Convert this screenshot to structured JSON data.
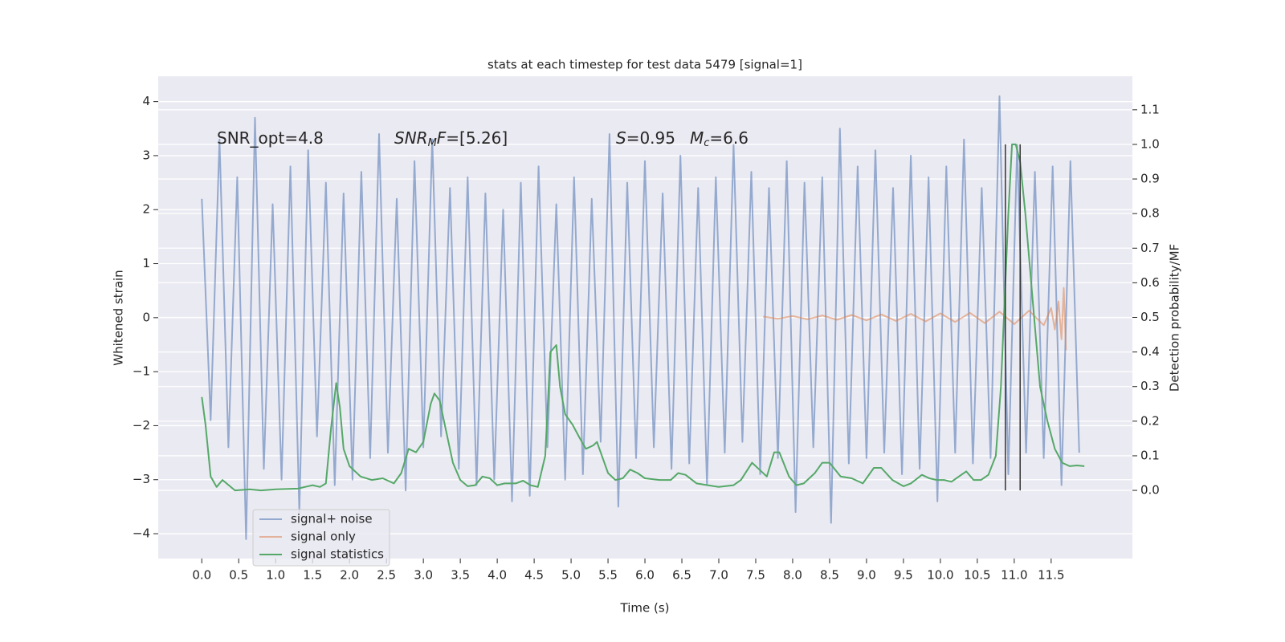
{
  "chart_data": {
    "type": "line",
    "title": "stats at each timestep for test data 5479 [signal=1]",
    "xlabel": "Time (s)",
    "ylabel": "Whitened strain",
    "y2label": "Detection probability/MF",
    "xlim": [
      -0.59,
      12.6
    ],
    "ylim": [
      -4.46,
      4.47
    ],
    "y2lim": [
      -0.197,
      1.197
    ],
    "xticks": [
      {
        "value": 0,
        "label": "0.0"
      },
      0.5,
      {
        "value": 1,
        "label": "1.0"
      },
      1.5,
      {
        "value": 2,
        "label": "2.0"
      },
      2.5,
      {
        "value": 3,
        "label": "3.0"
      },
      3.5,
      {
        "value": 4,
        "label": "4.0"
      },
      4.5,
      {
        "value": 5,
        "label": "5.0"
      },
      5.5,
      {
        "value": 6,
        "label": "6.0"
      },
      6.5,
      {
        "value": 7,
        "label": "7.0"
      },
      7.5,
      {
        "value": 8,
        "label": "8.0"
      },
      8.5,
      {
        "value": 9,
        "label": "9.0"
      },
      9.5,
      {
        "value": 10,
        "label": "10.0"
      },
      10.5,
      {
        "value": 11,
        "label": "11.0"
      },
      11.5
    ],
    "yticks": [
      {
        "value": -4,
        "label": "−4"
      },
      {
        "value": -3,
        "label": "−3"
      },
      {
        "value": -2,
        "label": "−2"
      },
      {
        "value": -1,
        "label": "−1"
      },
      0,
      1,
      2,
      3,
      4
    ],
    "y2ticks": [
      {
        "value": 0,
        "label": "0.0"
      },
      0.1,
      0.2,
      0.3,
      0.4,
      0.5,
      0.6,
      0.7,
      0.8,
      0.9,
      {
        "value": 1,
        "label": "1.0"
      },
      1.1
    ],
    "grid": true,
    "legend": "lower left",
    "series": [
      {
        "name": "signal+ noise",
        "color": "#4c72b0",
        "x": [
          0,
          0.12,
          0.24,
          0.36,
          0.48,
          0.6,
          0.72,
          0.84,
          0.96,
          1.08,
          1.2,
          1.32,
          1.44,
          1.56,
          1.68,
          1.8,
          1.92,
          2.04,
          2.16,
          2.28,
          2.4,
          2.52,
          2.64,
          2.76,
          2.88,
          3,
          3.12,
          3.24,
          3.36,
          3.48,
          3.6,
          3.72,
          3.84,
          3.96,
          4.08,
          4.2,
          4.32,
          4.44,
          4.56,
          4.68,
          4.8,
          4.92,
          5.04,
          5.16,
          5.28,
          5.4,
          5.52,
          5.64,
          5.76,
          5.88,
          6,
          6.12,
          6.24,
          6.36,
          6.48,
          6.6,
          6.72,
          6.84,
          6.96,
          7.08,
          7.2,
          7.32,
          7.44,
          7.56,
          7.68,
          7.8,
          7.92,
          8.04,
          8.16,
          8.28,
          8.4,
          8.52,
          8.64,
          8.76,
          8.88,
          9,
          9.12,
          9.24,
          9.36,
          9.48,
          9.6,
          9.72,
          9.84,
          9.96,
          10.08,
          10.2,
          10.32,
          10.44,
          10.56,
          10.68,
          10.8,
          10.92,
          11.04,
          11.16,
          11.28,
          11.4,
          11.52,
          11.64,
          11.76,
          11.88
        ],
        "values": [
          2.2,
          -1.9,
          3.3,
          -2.4,
          2.6,
          -4.1,
          3.7,
          -2.8,
          2.1,
          -3.0,
          2.8,
          -3.6,
          3.1,
          -2.2,
          2.5,
          -3.1,
          2.3,
          -3.0,
          2.7,
          -2.6,
          3.4,
          -2.5,
          2.2,
          -3.2,
          2.9,
          -2.4,
          3.3,
          -2.2,
          2.4,
          -2.8,
          2.6,
          -3.1,
          2.3,
          -3.0,
          2.0,
          -3.4,
          2.5,
          -3.3,
          2.8,
          -2.4,
          2.1,
          -3.0,
          2.6,
          -2.9,
          2.2,
          -2.3,
          3.4,
          -3.5,
          2.5,
          -2.6,
          2.9,
          -2.4,
          2.3,
          -2.8,
          3.0,
          -2.7,
          2.4,
          -3.1,
          2.6,
          -2.5,
          3.2,
          -2.3,
          2.7,
          -2.9,
          2.4,
          -2.6,
          2.9,
          -3.6,
          2.5,
          -2.4,
          2.6,
          -3.8,
          3.5,
          -2.7,
          2.8,
          -2.6,
          3.1,
          -2.5,
          2.4,
          -2.9,
          3.0,
          -2.8,
          2.6,
          -3.4,
          2.8,
          -2.5,
          3.3,
          -2.7,
          2.4,
          -2.6,
          4.1,
          -2.9,
          3.2,
          -2.5,
          2.7,
          -2.6,
          2.8,
          -3.1,
          2.9,
          -2.5
        ]
      },
      {
        "name": "signal only",
        "color": "#dd8452",
        "x": [
          7.6,
          7.8,
          8.0,
          8.2,
          8.4,
          8.6,
          8.8,
          9.0,
          9.2,
          9.4,
          9.6,
          9.8,
          10.0,
          10.2,
          10.4,
          10.6,
          10.8,
          11.0,
          11.2,
          11.4,
          11.5,
          11.55,
          11.6,
          11.64,
          11.67,
          11.7
        ],
        "values": [
          0.02,
          -0.02,
          0.03,
          -0.03,
          0.04,
          -0.04,
          0.05,
          -0.05,
          0.06,
          -0.06,
          0.07,
          -0.07,
          0.08,
          -0.08,
          0.09,
          -0.1,
          0.11,
          -0.12,
          0.13,
          -0.14,
          0.18,
          -0.22,
          0.3,
          -0.4,
          0.55,
          -0.6
        ]
      },
      {
        "name": "signal statistics",
        "color": "#55a868",
        "axis": "y2",
        "x": [
          0,
          0.05,
          0.12,
          0.2,
          0.28,
          0.45,
          0.65,
          0.8,
          1.0,
          1.3,
          1.5,
          1.6,
          1.68,
          1.75,
          1.82,
          1.87,
          1.92,
          2.0,
          2.15,
          2.3,
          2.45,
          2.6,
          2.7,
          2.8,
          2.9,
          3.0,
          3.1,
          3.15,
          3.22,
          3.3,
          3.4,
          3.5,
          3.6,
          3.7,
          3.8,
          3.9,
          4.0,
          4.1,
          4.25,
          4.35,
          4.45,
          4.55,
          4.65,
          4.72,
          4.8,
          4.85,
          4.92,
          5.02,
          5.12,
          5.2,
          5.3,
          5.35,
          5.45,
          5.5,
          5.6,
          5.7,
          5.8,
          5.9,
          6.0,
          6.2,
          6.35,
          6.45,
          6.55,
          6.7,
          6.85,
          7.0,
          7.2,
          7.3,
          7.45,
          7.55,
          7.65,
          7.75,
          7.82,
          7.95,
          8.05,
          8.15,
          8.3,
          8.4,
          8.5,
          8.65,
          8.8,
          8.95,
          9.1,
          9.2,
          9.35,
          9.5,
          9.6,
          9.75,
          9.85,
          9.95,
          10.05,
          10.15,
          10.25,
          10.35,
          10.45,
          10.55,
          10.65,
          10.75,
          10.82,
          10.87,
          10.92,
          10.97,
          11.02,
          11.08,
          11.15,
          11.25,
          11.35,
          11.45,
          11.55,
          11.65,
          11.75,
          11.85,
          11.95
        ],
        "values": [
          0.27,
          0.19,
          0.04,
          0.01,
          0.03,
          0.0,
          0.003,
          0.0,
          0.003,
          0.005,
          0.015,
          0.01,
          0.02,
          0.18,
          0.31,
          0.24,
          0.12,
          0.07,
          0.04,
          0.03,
          0.035,
          0.02,
          0.05,
          0.12,
          0.11,
          0.14,
          0.25,
          0.28,
          0.26,
          0.18,
          0.08,
          0.03,
          0.012,
          0.015,
          0.04,
          0.035,
          0.015,
          0.02,
          0.02,
          0.028,
          0.015,
          0.01,
          0.1,
          0.4,
          0.42,
          0.3,
          0.22,
          0.19,
          0.15,
          0.12,
          0.13,
          0.14,
          0.08,
          0.05,
          0.03,
          0.035,
          0.06,
          0.05,
          0.035,
          0.03,
          0.03,
          0.05,
          0.045,
          0.02,
          0.015,
          0.01,
          0.015,
          0.03,
          0.08,
          0.06,
          0.04,
          0.11,
          0.11,
          0.04,
          0.015,
          0.02,
          0.05,
          0.08,
          0.08,
          0.04,
          0.035,
          0.02,
          0.065,
          0.065,
          0.03,
          0.012,
          0.02,
          0.045,
          0.035,
          0.03,
          0.03,
          0.025,
          0.04,
          0.055,
          0.03,
          0.03,
          0.045,
          0.1,
          0.3,
          0.55,
          0.8,
          1.0,
          1.0,
          0.95,
          0.8,
          0.55,
          0.3,
          0.2,
          0.12,
          0.08,
          0.07,
          0.072,
          0.07
        ]
      }
    ],
    "vlines": [
      {
        "x": 10.88,
        "y2": [
          0,
          1
        ]
      },
      {
        "x": 11.08,
        "y2": [
          0,
          1
        ]
      }
    ],
    "vline_color": "#333333",
    "annotations": [
      [
        {
          "text": "SNR_opt=4.8"
        }
      ],
      [
        {
          "text": "SNR",
          "italic": true
        },
        {
          "text": "M",
          "italic": true,
          "sub": true
        },
        {
          "text": "F",
          "italic": true
        },
        {
          "text": "=[5.26]"
        }
      ],
      [
        {
          "text": "S",
          "italic": true
        },
        {
          "text": "=0.95"
        }
      ],
      [
        {
          "text": "M",
          "italic": true
        },
        {
          "text": "c",
          "italic": true,
          "sub": true
        },
        {
          "text": "=6.6"
        }
      ]
    ]
  }
}
